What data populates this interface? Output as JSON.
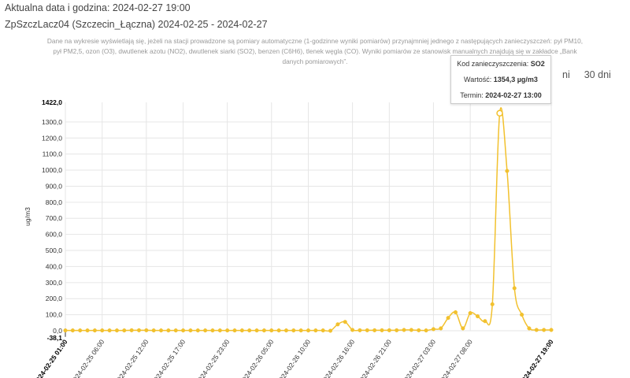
{
  "header": {
    "current_datetime": "Aktualna data i godzina: 2024-02-27 19:00",
    "station": "ZpSzczLacz04 (Szczecin_Łączna) 2024-02-25 - 2024-02-27"
  },
  "note": "Dane na wykresie wyświetlają się, jeżeli na stacji prowadzone są pomiary automatyczne (1-godzinne wyniki pomiarów) przynajmniej jednego z następujących zanieczyszczeń: pył PM10, pył PM2,5, ozon (O3), dwutlenek azotu (NO2), dwutlenek siarki (SO2), benzen (C6H6), tlenek węgla (CO). Wyniki pomiarów ze stanowisk manualnych znajdują się w zakładce „Bank danych pomiarowych”.",
  "range_buttons": [
    "ni",
    "30 dni"
  ],
  "tooltip": {
    "code_label": "Kod zanieczyszczenia:",
    "code_value": "SO2",
    "value_label": "Wartość:",
    "value": "1354,3 µg/m3",
    "term_label": "Termin:",
    "term": "2024-02-27 13:00"
  },
  "chart_data": {
    "type": "line",
    "ylabel": "ug/m3",
    "ylim": [
      -38.1,
      1422.0
    ],
    "y_min_label": "-38,1",
    "y_max_label": "1422,0",
    "y_ticks": [
      "0,0",
      "100,0",
      "200,0",
      "300,0",
      "400,0",
      "500,0",
      "600,0",
      "700,0",
      "800,0",
      "900,0",
      "1000,0",
      "1100,0",
      "1200,0",
      "1300,0"
    ],
    "x_tick_labels": [
      "2024-02-25 01:00",
      "2024-02-25 06:00",
      "2024-02-25 12:00",
      "2024-02-25 17:00",
      "2024-02-25 23:00",
      "2024-02-26 05:00",
      "2024-02-26 10:00",
      "2024-02-26 16:00",
      "2024-02-26 21:00",
      "2024-02-27 03:00",
      "2024-02-27 08:00",
      "2024-02-27 19:00"
    ],
    "x_start": "2024-02-25 01:00",
    "x_end": "2024-02-27 19:00",
    "grid": true,
    "color": "#f2c12e",
    "values": [
      2,
      2,
      2,
      2,
      2,
      2,
      2,
      2,
      2,
      3,
      3,
      3,
      2,
      2,
      2,
      2,
      2,
      2,
      2,
      2,
      2,
      2,
      2,
      2,
      2,
      2,
      2,
      2,
      2,
      2,
      2,
      2,
      2,
      2,
      2,
      2,
      0,
      40,
      55,
      5,
      3,
      3,
      3,
      3,
      3,
      3,
      5,
      5,
      3,
      2,
      10,
      15,
      80,
      115,
      15,
      110,
      90,
      60,
      165,
      1354.3,
      995,
      265,
      100,
      15,
      5,
      5,
      5
    ]
  }
}
